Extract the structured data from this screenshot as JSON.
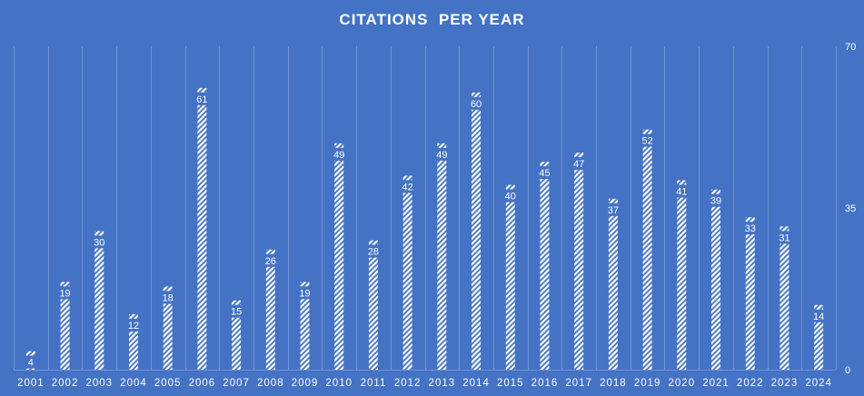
{
  "chart_data": {
    "type": "bar",
    "title": "CITATIONS  PER YEAR",
    "categories": [
      "2001",
      "2002",
      "2003",
      "2004",
      "2005",
      "2006",
      "2007",
      "2008",
      "2009",
      "2010",
      "2011",
      "2012",
      "2013",
      "2014",
      "2015",
      "2016",
      "2017",
      "2018",
      "2019",
      "2020",
      "2021",
      "2022",
      "2023",
      "2024"
    ],
    "values": [
      4,
      19,
      30,
      12,
      18,
      61,
      15,
      26,
      19,
      49,
      28,
      42,
      49,
      60,
      40,
      45,
      47,
      37,
      52,
      41,
      39,
      33,
      31,
      14
    ],
    "ylim": [
      0,
      70
    ],
    "yticks": [
      0,
      35,
      70
    ],
    "y_axis_side": "right",
    "grid": "vertical",
    "data_labels": true,
    "bar_fill": "diagonal-hatch",
    "colors": {
      "background": "#4472c4",
      "bar": "#ffffff",
      "grid": "#7093d3",
      "text": "#ffffff"
    }
  }
}
